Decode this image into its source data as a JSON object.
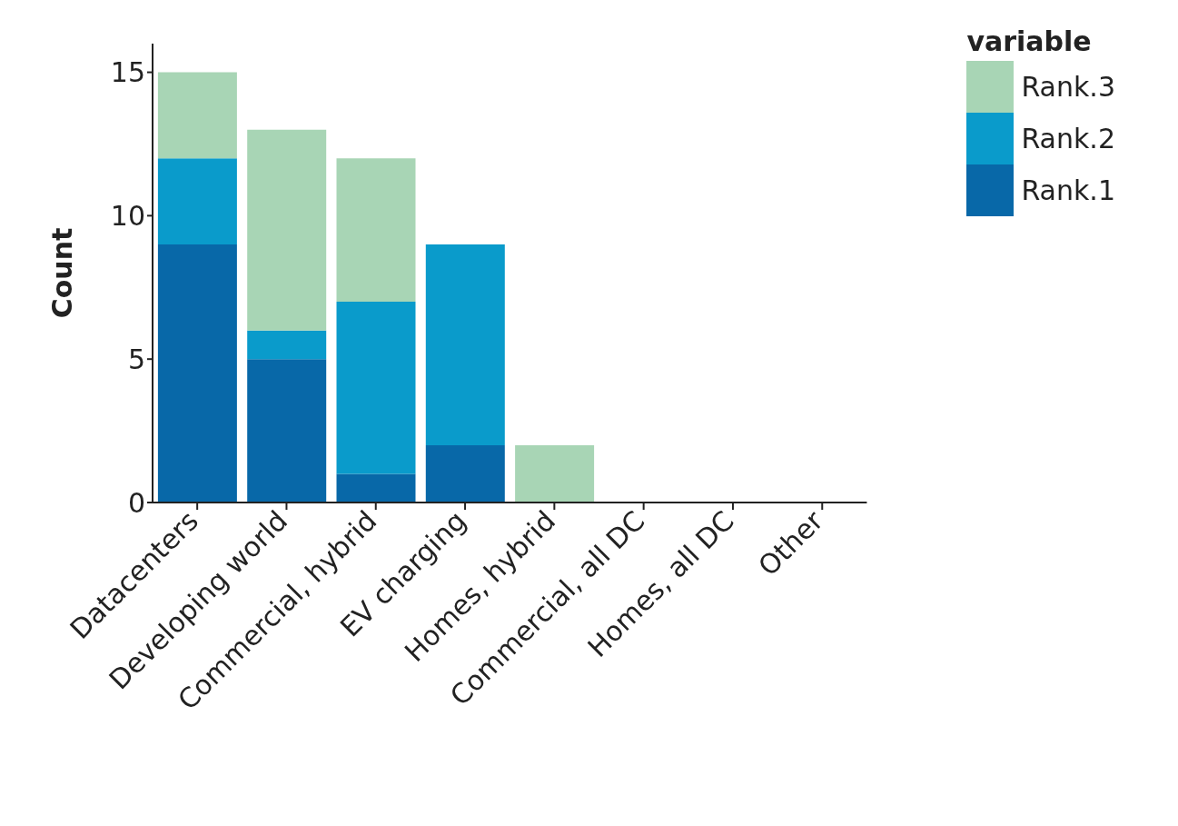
{
  "chart_data": {
    "type": "bar",
    "stacked": true,
    "ylabel": "Count",
    "legend_title": "variable",
    "legend": "top right",
    "grid": false,
    "categories": [
      "Datacenters",
      "Developing world",
      "Commercial, hybrid",
      "EV charging",
      "Homes, hybrid",
      "Commercial, all DC",
      "Homes, all DC",
      "Other"
    ],
    "series": [
      {
        "name": "Rank.1",
        "color": "#0868a8",
        "values": [
          9,
          5,
          1,
          2,
          0,
          0,
          0,
          0
        ]
      },
      {
        "name": "Rank.2",
        "color": "#0a9bcb",
        "values": [
          3,
          1,
          6,
          7,
          0,
          0,
          0,
          0
        ]
      },
      {
        "name": "Rank.3",
        "color": "#a8d5b5",
        "values": [
          3,
          7,
          5,
          0,
          2,
          0,
          0,
          0
        ]
      }
    ],
    "ylim": [
      0,
      16
    ],
    "yticks": [
      0,
      5,
      10,
      15
    ]
  }
}
